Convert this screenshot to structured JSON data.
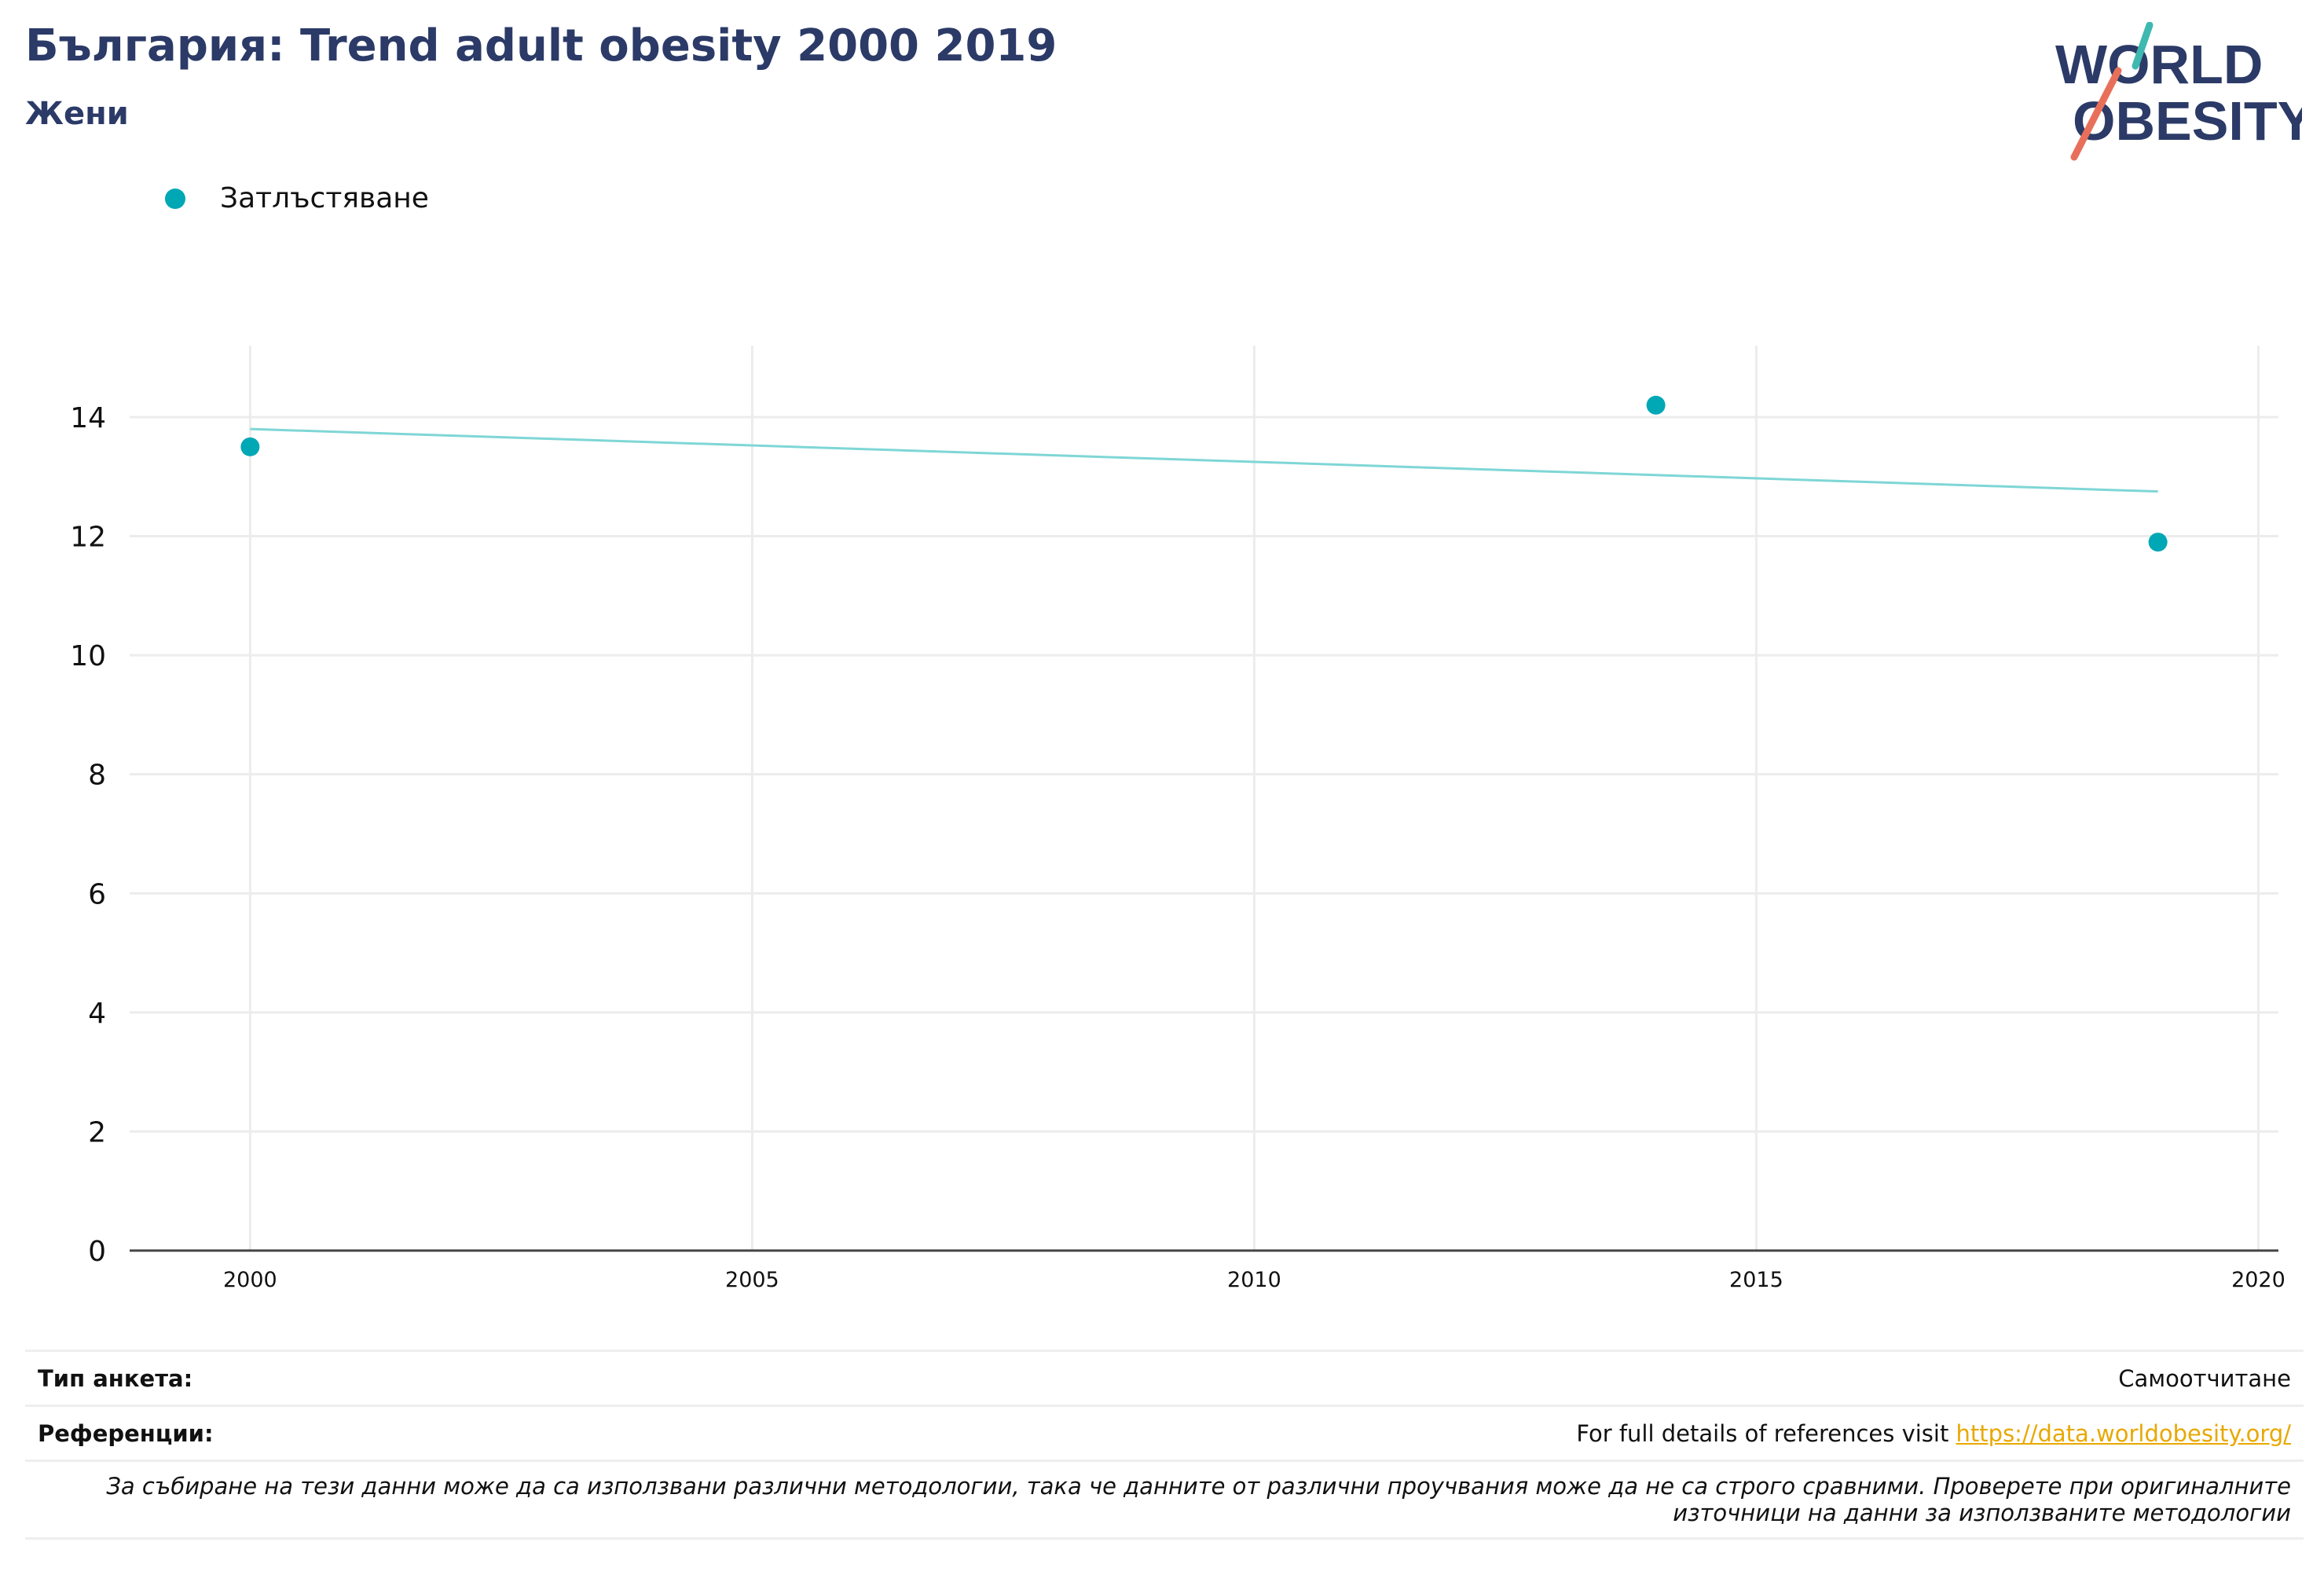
{
  "header": {
    "title": "България: Trend adult obesity 2000 2019",
    "subtitle": "Жени"
  },
  "logo": {
    "line1": "WORLD",
    "line2": "OBESITY",
    "teal": "#3fb8b0",
    "coral": "#e8705a",
    "navy": "#2b3a67"
  },
  "legend": {
    "label": "Затлъстяване",
    "color": "#00a7b5"
  },
  "chart_data": {
    "type": "scatter",
    "series": [
      {
        "name": "Затлъстяване",
        "x": [
          2000,
          2014,
          2019
        ],
        "y": [
          13.5,
          14.2,
          11.9
        ],
        "color": "#00a7b5"
      }
    ],
    "trendline": {
      "x": [
        2000,
        2019
      ],
      "y": [
        13.8,
        12.75
      ],
      "color": "#7fd6d6"
    },
    "xlim": [
      1998.8,
      2020.2
    ],
    "ylim": [
      0,
      15.2
    ],
    "xticks": [
      2000,
      2005,
      2010,
      2015,
      2020
    ],
    "yticks": [
      0,
      2,
      4,
      6,
      8,
      10,
      12,
      14
    ],
    "grid": true
  },
  "footer": {
    "survey_label": "Тип анкета:",
    "survey_value": "Самоотчитане",
    "references_label": "Референции:",
    "references_text": "For full details of references visit ",
    "references_link": "https://data.worldobesity.org/",
    "note": "За събиране на тези данни може да са използвани различни методологии, така че данните от различни проучвания може да не са строго сравними. Проверете при оригиналните източници на данни за използваните методологии"
  }
}
